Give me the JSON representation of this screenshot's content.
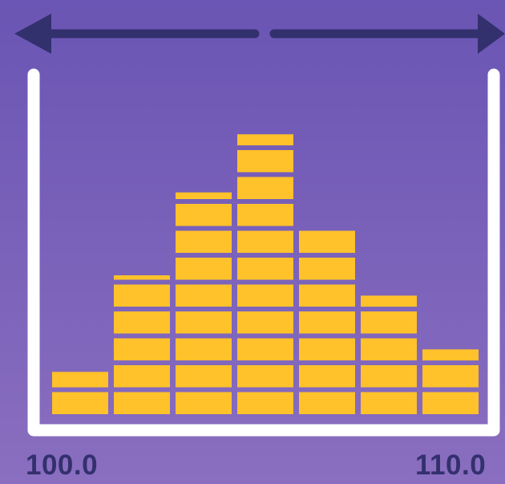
{
  "colors": {
    "background_top": "#6a55b4",
    "background_bottom": "#8a6ebf",
    "arrow": "#33306e",
    "frame": "#ffffff",
    "bars": "#ffc22a",
    "label_text": "#33306e"
  },
  "range_arrow": {
    "icon_left": "arrow-left-icon",
    "icon_right": "arrow-right-icon",
    "style": "double-headed arrow with center gap"
  },
  "axis": {
    "min_label": "100.0",
    "max_label": "110.0"
  },
  "histogram": {
    "bin_count": 7,
    "column_heights": [
      1.7,
      5.2,
      8.3,
      10.5,
      7.0,
      4.5,
      2.5
    ],
    "slab_unit": 1,
    "slab_style": "stacked horizontal slabs with gaps"
  }
}
